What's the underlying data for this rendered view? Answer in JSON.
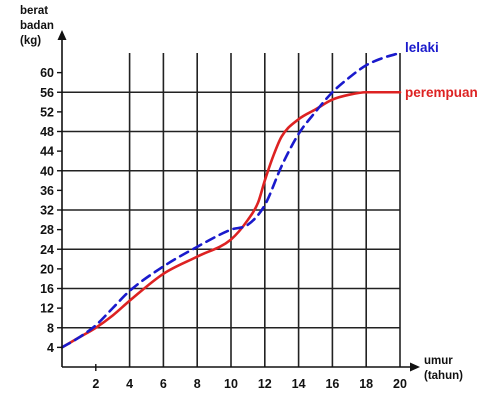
{
  "chart_data": {
    "type": "line",
    "title": "",
    "ylabel_lines": [
      "berat",
      "badan",
      "(kg)"
    ],
    "xlabel_lines": [
      "umur",
      "(tahun)"
    ],
    "xlim": [
      0,
      20
    ],
    "ylim": [
      0,
      64
    ],
    "x_ticks": [
      2,
      4,
      6,
      8,
      10,
      12,
      14,
      16,
      18,
      20
    ],
    "y_ticks": [
      4,
      8,
      12,
      16,
      20,
      24,
      28,
      32,
      36,
      40,
      44,
      48,
      52,
      56,
      60
    ],
    "grid": true,
    "legend": "end-of-line labels (right)",
    "series": [
      {
        "name": "lelaki",
        "color": "#1a1acc",
        "style": "dashed",
        "points": [
          [
            0,
            4
          ],
          [
            1,
            6
          ],
          [
            2,
            8.5
          ],
          [
            3,
            12
          ],
          [
            4,
            15.5
          ],
          [
            6,
            20.5
          ],
          [
            8,
            24.5
          ],
          [
            10,
            28
          ],
          [
            11,
            29
          ],
          [
            12,
            33
          ],
          [
            13,
            41
          ],
          [
            14,
            47.5
          ],
          [
            15,
            52
          ],
          [
            16,
            56
          ],
          [
            17,
            59
          ],
          [
            18,
            61.5
          ],
          [
            19,
            63
          ],
          [
            20,
            64
          ]
        ]
      },
      {
        "name": "perempuan",
        "color": "#dd2222",
        "style": "solid",
        "points": [
          [
            0,
            4
          ],
          [
            1,
            6
          ],
          [
            2,
            8
          ],
          [
            3,
            10.5
          ],
          [
            4,
            13.5
          ],
          [
            6,
            19
          ],
          [
            8,
            22.5
          ],
          [
            10,
            26
          ],
          [
            11,
            30
          ],
          [
            11.6,
            33.5
          ],
          [
            12,
            38
          ],
          [
            12.5,
            43
          ],
          [
            13,
            47
          ],
          [
            14,
            50.5
          ],
          [
            15,
            52.5
          ],
          [
            16,
            54.5
          ],
          [
            17,
            55.5
          ],
          [
            18,
            56
          ],
          [
            19,
            56
          ],
          [
            20,
            56
          ]
        ]
      }
    ]
  }
}
